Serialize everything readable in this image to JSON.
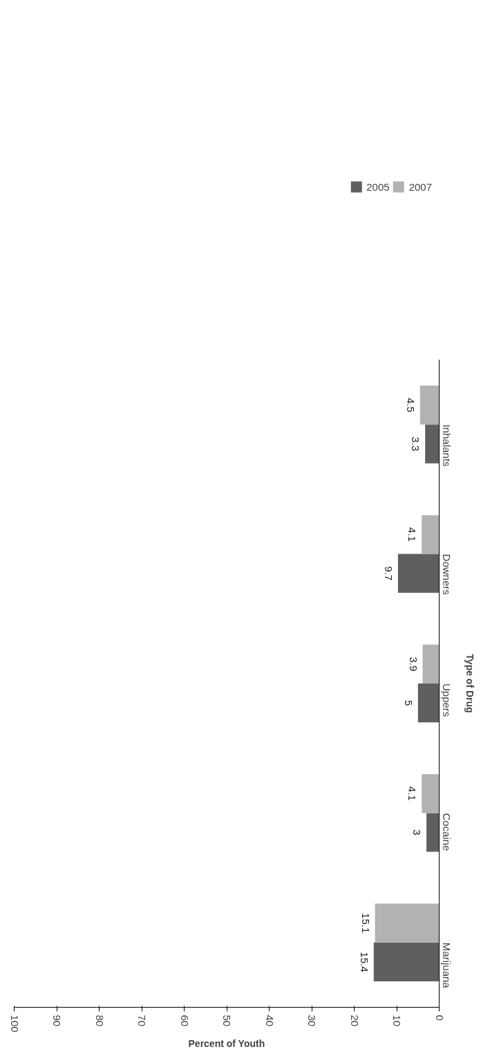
{
  "chart_data": {
    "type": "bar",
    "orientation": "horizontal",
    "xlabel": "Percent of Youth",
    "ylabel": "Type of Drug",
    "categories": [
      "Inhalants",
      "Downers",
      "Uppers",
      "Cocaine",
      "Marijuana"
    ],
    "series": [
      {
        "name": "2005",
        "color": "#5f5f5f",
        "values": [
          3.3,
          9.7,
          5,
          3,
          15.4
        ]
      },
      {
        "name": "2007",
        "color": "#b2b2b2",
        "values": [
          4.5,
          4.1,
          3.9,
          4.1,
          15.1
        ]
      }
    ],
    "xlim": [
      100,
      0
    ],
    "xticks": [
      0,
      10,
      20,
      30,
      40,
      50,
      60,
      70,
      80,
      90,
      100
    ],
    "data_labels": true,
    "grid": false,
    "legend": "top right"
  }
}
